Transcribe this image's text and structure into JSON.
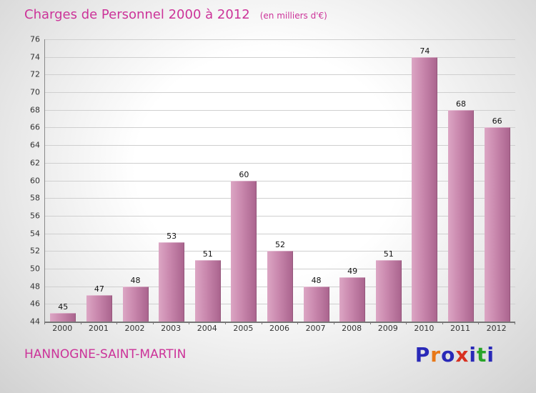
{
  "header": {
    "title": "Charges de Personnel 2000 à 2012",
    "subtitle": "(en milliers d'€)"
  },
  "chart_data": {
    "type": "bar",
    "categories": [
      "2000",
      "2001",
      "2002",
      "2003",
      "2004",
      "2005",
      "2006",
      "2007",
      "2008",
      "2009",
      "2010",
      "2011",
      "2012"
    ],
    "values": [
      45,
      47,
      48,
      53,
      51,
      60,
      52,
      48,
      49,
      51,
      74,
      68,
      66
    ],
    "title": "Charges de Personnel 2000 à 2012",
    "subtitle": "(en milliers d'€)",
    "xlabel": "",
    "ylabel": "",
    "ylim": [
      44,
      76
    ],
    "ytick_step": 2,
    "grid": true,
    "legend": "none",
    "bar_color_light": "#dca6c4",
    "bar_color_dark": "#a9638d",
    "accent_color": "#cc3399"
  },
  "footer": {
    "commune": "HANNOGNE-SAINT-MARTIN",
    "logo": {
      "name": "Proxiti",
      "letters": [
        {
          "ch": "P",
          "color": "#2929b8"
        },
        {
          "ch": "r",
          "color": "#e87818"
        },
        {
          "ch": "o",
          "color": "#2929b8"
        },
        {
          "ch": "x",
          "color": "#d83020"
        },
        {
          "ch": "i",
          "color": "#2929b8"
        },
        {
          "ch": "t",
          "color": "#28a428"
        },
        {
          "ch": "i",
          "color": "#2929b8"
        }
      ]
    }
  }
}
